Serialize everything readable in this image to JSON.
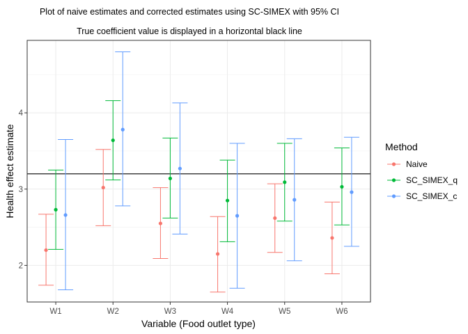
{
  "chart_data": {
    "type": "errorbar",
    "title": "Plot of naive estimates and corrected estimates using SC-SIMEX with 95% CI",
    "subtitle": "True coefficient value is displayed in a horizontal black line",
    "xlabel": "Variable (Food outlet type)",
    "ylabel": "Health effect estimate",
    "ylim": [
      1.52,
      4.95
    ],
    "yticks": [
      2,
      3,
      4
    ],
    "ytick_labels": [
      "2",
      "3",
      "4"
    ],
    "grid": true,
    "true_value": 3.2,
    "legend": {
      "title": "Method",
      "placement": "right"
    },
    "categories": [
      "W1",
      "W2",
      "W3",
      "W4",
      "W5",
      "W6"
    ],
    "series": [
      {
        "name": "Naive",
        "color": "#F8766D",
        "estimate": [
          2.2,
          3.02,
          2.55,
          2.15,
          2.62,
          2.36
        ],
        "lower": [
          1.74,
          2.52,
          2.09,
          1.65,
          2.17,
          1.89
        ],
        "upper": [
          2.67,
          3.52,
          3.02,
          2.64,
          3.07,
          2.83
        ]
      },
      {
        "name": "SC_SIMEX_q",
        "color": "#00BA38",
        "estimate": [
          2.73,
          3.64,
          3.14,
          2.85,
          3.09,
          3.03
        ],
        "lower": [
          2.21,
          3.12,
          2.62,
          2.31,
          2.58,
          2.53
        ],
        "upper": [
          3.25,
          4.16,
          3.67,
          3.38,
          3.6,
          3.54
        ]
      },
      {
        "name": "SC_SIMEX_c",
        "color": "#619CFF",
        "estimate": [
          2.66,
          3.78,
          3.27,
          2.65,
          2.86,
          2.96
        ],
        "lower": [
          1.68,
          2.78,
          2.41,
          1.7,
          2.06,
          2.25
        ],
        "upper": [
          3.65,
          4.8,
          4.13,
          3.6,
          3.66,
          3.68
        ]
      }
    ]
  }
}
